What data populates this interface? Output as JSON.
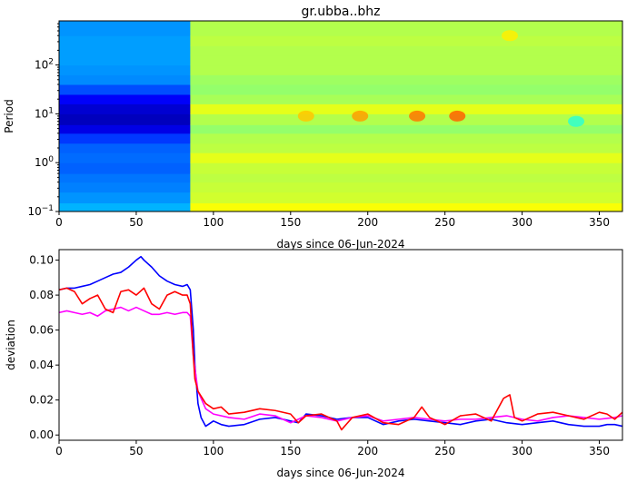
{
  "chart_data": [
    {
      "type": "heatmap",
      "title": "gr.ubba..bhz",
      "xlabel": "days since 06-Jun-2024",
      "ylabel": "Period",
      "xlim": [
        0,
        365
      ],
      "ylim": [
        0.1,
        800
      ],
      "yscale": "log",
      "x_ticks": [
        "0",
        "50",
        "100",
        "150",
        "200",
        "250",
        "300",
        "350"
      ],
      "y_ticks": [
        "10^-1",
        "10^0",
        "10^1",
        "10^2"
      ],
      "colormap": "jet",
      "color_range": [
        0,
        1
      ],
      "period_bands": [
        0.1,
        0.15,
        0.25,
        0.4,
        0.6,
        1.0,
        1.6,
        2.5,
        4,
        6,
        10,
        16,
        25,
        40,
        63,
        100,
        160,
        250,
        400,
        800
      ],
      "time_blocks": [
        {
          "x": [
            0,
            85
          ],
          "levels": [
            0.3,
            0.27,
            0.25,
            0.24,
            0.22,
            0.23,
            0.22,
            0.18,
            0.1,
            0.06,
            0.08,
            0.12,
            0.2,
            0.26,
            0.27,
            0.28,
            0.28,
            0.28,
            0.27
          ]
        },
        {
          "x": [
            85,
            365
          ],
          "levels": [
            0.62,
            0.58,
            0.57,
            0.56,
            0.57,
            0.6,
            0.56,
            0.55,
            0.52,
            0.55,
            0.6,
            0.54,
            0.52,
            0.53,
            0.55,
            0.55,
            0.55,
            0.56,
            0.55
          ]
        }
      ],
      "hot_spots": [
        {
          "x": 160,
          "period": 9,
          "level": 0.68
        },
        {
          "x": 195,
          "period": 9,
          "level": 0.72
        },
        {
          "x": 232,
          "period": 9,
          "level": 0.76
        },
        {
          "x": 258,
          "period": 9,
          "level": 0.78
        },
        {
          "x": 292,
          "period": 400,
          "level": 0.64
        },
        {
          "x": 335,
          "period": 7,
          "level": 0.42
        }
      ]
    },
    {
      "type": "line",
      "xlabel": "days since 06-Jun-2024",
      "ylabel": "deviation",
      "xlim": [
        0,
        365
      ],
      "ylim": [
        -0.003,
        0.106
      ],
      "x_ticks": [
        "0",
        "50",
        "100",
        "150",
        "200",
        "250",
        "300",
        "350"
      ],
      "y_ticks": [
        "0.00",
        "0.02",
        "0.04",
        "0.06",
        "0.08",
        "0.10"
      ],
      "y_tick_values": [
        0,
        0.02,
        0.04,
        0.06,
        0.08,
        0.1
      ],
      "series": [
        {
          "color": "#0000ff",
          "x": [
            0,
            5,
            10,
            15,
            20,
            25,
            30,
            35,
            40,
            45,
            50,
            53,
            55,
            60,
            65,
            70,
            75,
            80,
            83,
            85,
            87,
            88,
            90,
            92,
            95,
            100,
            105,
            110,
            120,
            130,
            140,
            150,
            155,
            160,
            170,
            180,
            190,
            200,
            210,
            220,
            230,
            240,
            250,
            260,
            270,
            280,
            290,
            300,
            310,
            320,
            330,
            340,
            350,
            355,
            360,
            365
          ],
          "y": [
            0.083,
            0.084,
            0.084,
            0.085,
            0.086,
            0.088,
            0.09,
            0.092,
            0.093,
            0.096,
            0.1,
            0.102,
            0.1,
            0.096,
            0.091,
            0.088,
            0.086,
            0.085,
            0.086,
            0.083,
            0.06,
            0.04,
            0.018,
            0.01,
            0.005,
            0.008,
            0.006,
            0.005,
            0.006,
            0.009,
            0.01,
            0.008,
            0.007,
            0.012,
            0.011,
            0.009,
            0.01,
            0.01,
            0.006,
            0.008,
            0.009,
            0.008,
            0.007,
            0.006,
            0.008,
            0.009,
            0.007,
            0.006,
            0.007,
            0.008,
            0.006,
            0.005,
            0.005,
            0.006,
            0.006,
            0.005
          ]
        },
        {
          "color": "#ff00ff",
          "x": [
            0,
            5,
            10,
            15,
            20,
            25,
            30,
            35,
            40,
            45,
            50,
            55,
            60,
            65,
            70,
            75,
            80,
            83,
            85,
            87,
            90,
            95,
            100,
            110,
            120,
            130,
            140,
            150,
            160,
            170,
            180,
            190,
            200,
            210,
            220,
            230,
            240,
            250,
            260,
            270,
            280,
            290,
            300,
            310,
            320,
            330,
            340,
            350,
            360,
            365
          ],
          "y": [
            0.07,
            0.071,
            0.07,
            0.069,
            0.07,
            0.068,
            0.071,
            0.072,
            0.073,
            0.071,
            0.073,
            0.071,
            0.069,
            0.069,
            0.07,
            0.069,
            0.07,
            0.07,
            0.068,
            0.045,
            0.025,
            0.015,
            0.012,
            0.01,
            0.009,
            0.012,
            0.011,
            0.007,
            0.011,
            0.01,
            0.008,
            0.01,
            0.011,
            0.008,
            0.009,
            0.01,
            0.009,
            0.008,
            0.009,
            0.009,
            0.01,
            0.011,
            0.009,
            0.008,
            0.01,
            0.011,
            0.01,
            0.009,
            0.01,
            0.011
          ]
        },
        {
          "color": "#ff0000",
          "x": [
            0,
            5,
            10,
            15,
            20,
            25,
            30,
            35,
            40,
            45,
            50,
            55,
            60,
            65,
            70,
            75,
            80,
            83,
            85,
            87,
            88,
            90,
            95,
            100,
            105,
            110,
            120,
            130,
            140,
            150,
            155,
            160,
            170,
            180,
            183,
            190,
            200,
            210,
            220,
            230,
            235,
            240,
            250,
            260,
            270,
            280,
            288,
            292,
            295,
            300,
            310,
            320,
            330,
            340,
            350,
            355,
            360,
            365
          ],
          "y": [
            0.083,
            0.084,
            0.082,
            0.075,
            0.078,
            0.08,
            0.072,
            0.07,
            0.082,
            0.083,
            0.08,
            0.084,
            0.075,
            0.072,
            0.08,
            0.082,
            0.08,
            0.08,
            0.075,
            0.045,
            0.032,
            0.025,
            0.018,
            0.015,
            0.016,
            0.012,
            0.013,
            0.015,
            0.014,
            0.012,
            0.007,
            0.011,
            0.012,
            0.008,
            0.003,
            0.01,
            0.012,
            0.007,
            0.006,
            0.01,
            0.016,
            0.01,
            0.006,
            0.011,
            0.012,
            0.008,
            0.021,
            0.023,
            0.01,
            0.008,
            0.012,
            0.013,
            0.011,
            0.009,
            0.013,
            0.012,
            0.009,
            0.013
          ]
        }
      ]
    }
  ]
}
